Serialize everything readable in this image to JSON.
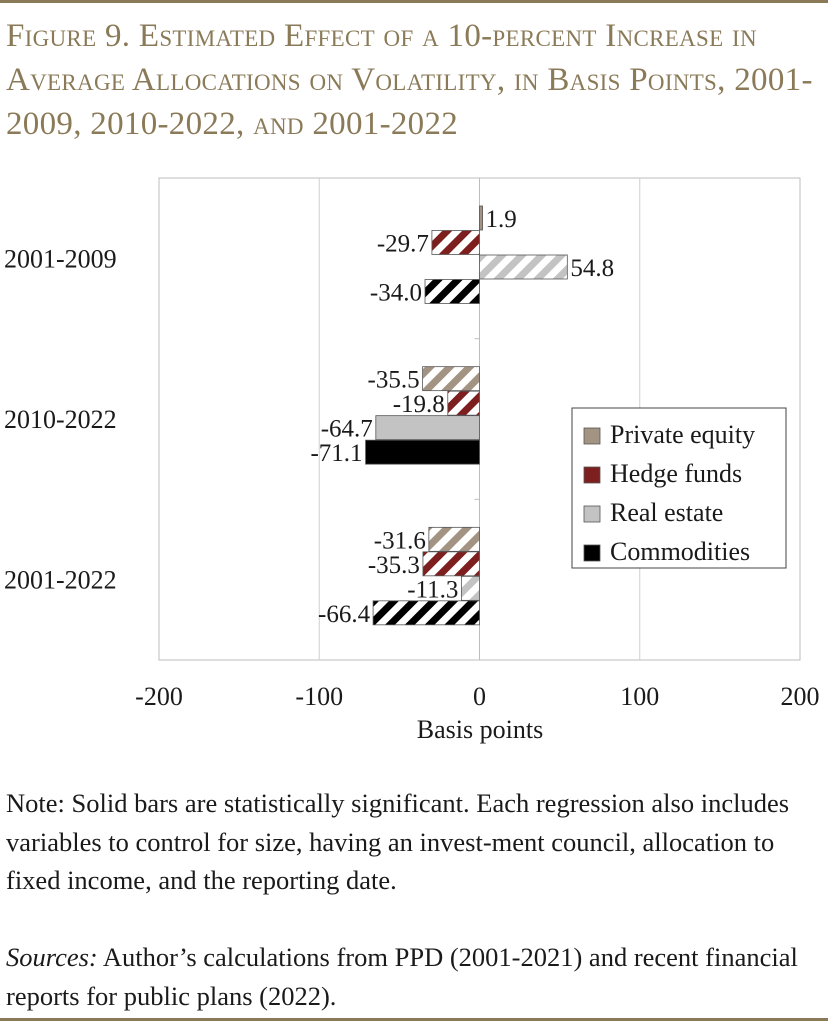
{
  "figure": {
    "title": "Figure 9. Estimated Effect of a 10-percent Increase in Average Allocations on Volatility, in Basis Points, 2001-2009, 2010-2022, and 2001-2022"
  },
  "chart_data": {
    "type": "bar",
    "orientation": "horizontal",
    "categories": [
      "2001-2009",
      "2010-2022",
      "2001-2022"
    ],
    "series": [
      {
        "name": "Private equity",
        "values": [
          1.9,
          -35.5,
          -31.6
        ],
        "labels": [
          "1.9",
          "-35.5",
          "-31.6"
        ],
        "significant": [
          true,
          false,
          false
        ]
      },
      {
        "name": "Hedge funds",
        "values": [
          -29.7,
          -19.8,
          -35.3
        ],
        "labels": [
          "-29.7",
          "-19.8",
          "-35.3"
        ],
        "significant": [
          false,
          false,
          false
        ]
      },
      {
        "name": "Real estate",
        "values": [
          54.8,
          -64.7,
          -11.3
        ],
        "labels": [
          "54.8",
          "-64.7",
          "-11.3"
        ],
        "significant": [
          false,
          true,
          false
        ]
      },
      {
        "name": "Commodities",
        "values": [
          -34.0,
          -71.1,
          -66.4
        ],
        "labels": [
          "-34.0",
          "-71.1",
          "-66.4"
        ],
        "significant": [
          false,
          true,
          false
        ]
      }
    ],
    "xlabel": "Basis points",
    "ylabel": "",
    "xlim": [
      -200,
      200
    ],
    "xticks": [
      -200,
      -100,
      0,
      100,
      200
    ],
    "tick_labels": [
      "-200",
      "-100",
      "0",
      "100",
      "200"
    ],
    "grid": true,
    "legend_position": "right",
    "colors": {
      "Private equity": "#a39383",
      "Hedge funds": "#7e1f1f",
      "Real estate": "#c3c3c3",
      "Commodities": "#000000"
    },
    "pattern_note": "hatched bars = not significant; solid bars = statistically significant"
  },
  "note": {
    "text": "Note: Solid bars are statistically significant.  Each regression also includes variables to control for size, having an invest-ment council, allocation to fixed income, and the reporting date."
  },
  "sources": {
    "label": "Sources:",
    "text": " Author’s calculations from PPD (2001-2021) and recent financial reports for public plans (2022)."
  },
  "colors": {
    "title": "#8a7a58",
    "rule": "#8a7a58"
  }
}
